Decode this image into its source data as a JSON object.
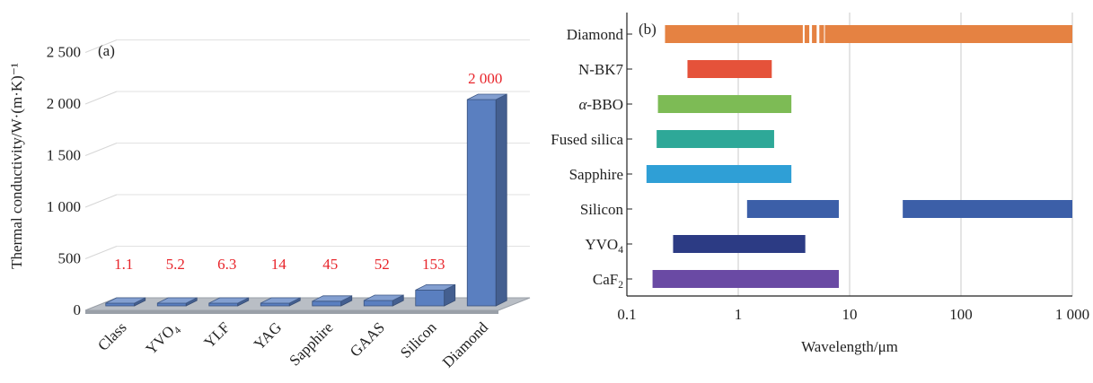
{
  "chart_data": [
    {
      "panel": "(a)",
      "type": "bar",
      "ylabel": "Thermal conductivity/W·(m·K)⁻¹",
      "ylim": [
        0,
        2500
      ],
      "yticks": [
        0,
        500,
        1000,
        1500,
        2000,
        2500
      ],
      "ytick_labels": [
        "0",
        "500",
        "1 000",
        "1 500",
        "2 000",
        "2 500"
      ],
      "categories": [
        "Class",
        "YVO₄",
        "YLF",
        "YAG",
        "Sapphire",
        "GAAS",
        "Silicon",
        "Diamond"
      ],
      "values": [
        1.1,
        5.2,
        6.3,
        14,
        45,
        52,
        153,
        2000
      ],
      "value_labels": [
        "1.1",
        "5.2",
        "6.3",
        "14",
        "45",
        "52",
        "153",
        "2 000"
      ],
      "bar_color": "#5a7fc0",
      "label_color": "#e8252b",
      "grid": true
    },
    {
      "panel": "(b)",
      "type": "bar",
      "orientation": "horizontal-range",
      "xlabel": "Wavelength/μm",
      "xscale": "log",
      "xlim": [
        0.1,
        1000
      ],
      "xticks": [
        0.1,
        1,
        10,
        100,
        1000
      ],
      "xtick_labels": [
        "0.1",
        "1",
        "10",
        "100",
        "1 000"
      ],
      "categories": [
        "Diamond",
        "N-BK7",
        "α-BBO",
        "Fused silica",
        "Sapphire",
        "Silicon",
        "YVO₄",
        "CaF₂"
      ],
      "series": [
        {
          "category": "Diamond",
          "ranges": [
            [
              0.22,
              1000
            ]
          ],
          "gap": [
            3.8,
            6.0
          ],
          "color": "#e58242"
        },
        {
          "category": "N-BK7",
          "ranges": [
            [
              0.35,
              2.0
            ]
          ],
          "color": "#e5523a"
        },
        {
          "category": "α-BBO",
          "ranges": [
            [
              0.19,
              3.0
            ]
          ],
          "color": "#7dbb55"
        },
        {
          "category": "Fused silica",
          "ranges": [
            [
              0.185,
              2.1
            ]
          ],
          "color": "#2ea898"
        },
        {
          "category": "Sapphire",
          "ranges": [
            [
              0.15,
              3.0
            ]
          ],
          "color": "#2f9fd6"
        },
        {
          "category": "Silicon",
          "ranges": [
            [
              1.2,
              8.0
            ],
            [
              30,
              1000
            ]
          ],
          "color": "#3c5fa8"
        },
        {
          "category": "YVO₄",
          "ranges": [
            [
              0.26,
              4.0
            ]
          ],
          "color": "#2c3b84"
        },
        {
          "category": "CaF₂",
          "ranges": [
            [
              0.17,
              8.0
            ]
          ],
          "color": "#6a4aa4"
        }
      ],
      "grid": true
    }
  ]
}
